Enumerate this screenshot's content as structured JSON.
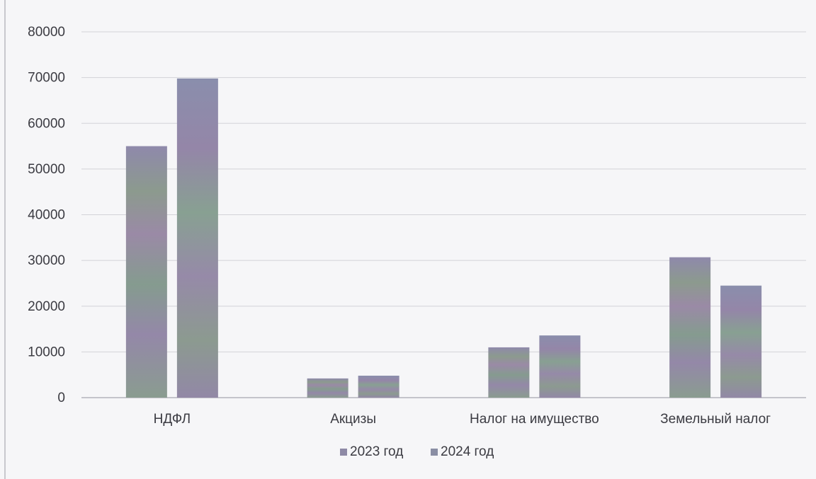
{
  "chart_data": {
    "type": "bar",
    "categories": [
      "НДФЛ",
      "Акцизы",
      "Налог на имущество",
      "Земельный  налог"
    ],
    "series": [
      {
        "name": "2023 год",
        "values": [
          55000,
          4200,
          11000,
          30700
        ],
        "color": "#8e8aa6"
      },
      {
        "name": "2024 год",
        "values": [
          69800,
          4800,
          13600,
          24500
        ],
        "color": "#8a8ea4"
      }
    ],
    "ylim": [
      0,
      80000
    ],
    "yticks": [
      0,
      10000,
      20000,
      30000,
      40000,
      50000,
      60000,
      70000,
      80000
    ],
    "grid": true,
    "legend": "bottom",
    "title": "",
    "xlabel": "",
    "ylabel": ""
  }
}
